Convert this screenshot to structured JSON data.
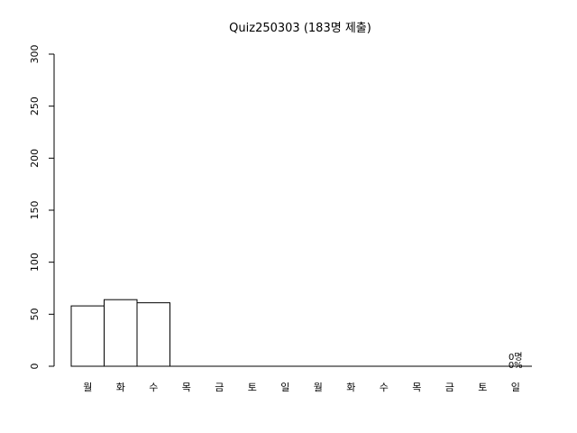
{
  "chart_data": {
    "type": "bar",
    "title": "Quiz250303 (183명 제출)",
    "xlabel": "",
    "ylabel": "",
    "ylim": [
      0,
      300
    ],
    "yticks": [
      0,
      50,
      100,
      150,
      200,
      250,
      300
    ],
    "categories": [
      "월",
      "화",
      "수",
      "목",
      "금",
      "토",
      "일",
      "월",
      "화",
      "수",
      "목",
      "금",
      "토",
      "일"
    ],
    "values": [
      58,
      64,
      61,
      0,
      0,
      0,
      0,
      0,
      0,
      0,
      0,
      0,
      0,
      0
    ],
    "annotations": [
      {
        "category_index": 13,
        "lines": [
          "0명",
          "0%"
        ]
      }
    ],
    "grid": false,
    "colors": {
      "bar_fill": "#ffffff",
      "bar_stroke": "#000000",
      "axis": "#000000"
    }
  }
}
